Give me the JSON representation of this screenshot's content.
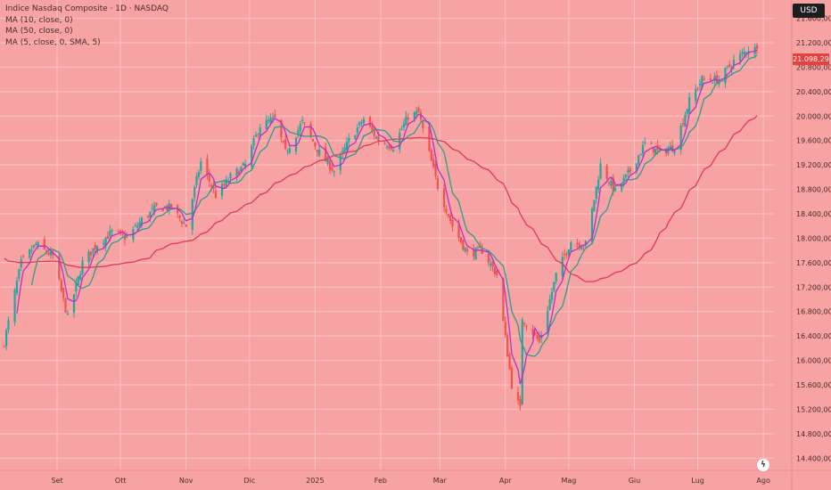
{
  "chart_data": {
    "type": "candlestick",
    "title": "Indice Nasdaq Composite · 1D · NASDAQ",
    "legend_entries": [
      "MA (10, close, 0)",
      "MA (50, close, 0)",
      "MA (5, close, 0, SMA, 5)"
    ],
    "currency": "USD",
    "last_price_label": "21.098,29",
    "last_price": 21098.29,
    "y_ticks": [
      {
        "value": 21600,
        "label": "21.600,00"
      },
      {
        "value": 21200,
        "label": "21.200,00"
      },
      {
        "value": 20800,
        "label": "20.800,00"
      },
      {
        "value": 20400,
        "label": "20.400,00"
      },
      {
        "value": 20000,
        "label": "20.000,00"
      },
      {
        "value": 19600,
        "label": "19.600,00"
      },
      {
        "value": 19200,
        "label": "19.200,00"
      },
      {
        "value": 18800,
        "label": "18.800,00"
      },
      {
        "value": 18400,
        "label": "18.400,00"
      },
      {
        "value": 18000,
        "label": "18.000,00"
      },
      {
        "value": 17600,
        "label": "17.600,00"
      },
      {
        "value": 17200,
        "label": "17.200,00"
      },
      {
        "value": 16800,
        "label": "16.800,00"
      },
      {
        "value": 16400,
        "label": "16.400,00"
      },
      {
        "value": 16000,
        "label": "16.000,00"
      },
      {
        "value": 15600,
        "label": "15.600,00"
      },
      {
        "value": 15200,
        "label": "15.200,00"
      },
      {
        "value": 14800,
        "label": "14.800,00"
      },
      {
        "value": 14400,
        "label": "14.400,00"
      }
    ],
    "ylim": [
      14200,
      21900
    ],
    "x_ticks": [
      "Set",
      "Ott",
      "Nov",
      "Dic",
      "2025",
      "Feb",
      "Mar",
      "Apr",
      "Mag",
      "Giu",
      "Lug",
      "Ago"
    ],
    "close_path": [
      [
        "2024-08-07",
        16300
      ],
      [
        "2024-08-15",
        17600
      ],
      [
        "2024-08-22",
        17900
      ],
      [
        "2024-08-30",
        17700
      ],
      [
        "2024-09-06",
        16700
      ],
      [
        "2024-09-13",
        17600
      ],
      [
        "2024-09-20",
        17900
      ],
      [
        "2024-09-27",
        18100
      ],
      [
        "2024-10-04",
        18000
      ],
      [
        "2024-10-11",
        18300
      ],
      [
        "2024-10-18",
        18500
      ],
      [
        "2024-10-25",
        18500
      ],
      [
        "2024-11-01",
        18200
      ],
      [
        "2024-11-08",
        19250
      ],
      [
        "2024-11-15",
        18700
      ],
      [
        "2024-11-22",
        19000
      ],
      [
        "2024-11-29",
        19200
      ],
      [
        "2024-12-06",
        19850
      ],
      [
        "2024-12-13",
        19950
      ],
      [
        "2024-12-18",
        19400
      ],
      [
        "2024-12-26",
        19900
      ],
      [
        "2025-01-03",
        19400
      ],
      [
        "2025-01-10",
        19100
      ],
      [
        "2025-01-17",
        19600
      ],
      [
        "2025-01-24",
        19950
      ],
      [
        "2025-01-31",
        19600
      ],
      [
        "2025-02-07",
        19500
      ],
      [
        "2025-02-14",
        20000
      ],
      [
        "2025-02-19",
        20050
      ],
      [
        "2025-02-28",
        18850
      ],
      [
        "2025-03-07",
        18200
      ],
      [
        "2025-03-14",
        17750
      ],
      [
        "2025-03-21",
        17800
      ],
      [
        "2025-03-28",
        17400
      ],
      [
        "2025-04-04",
        15600
      ],
      [
        "2025-04-08",
        15200
      ],
      [
        "2025-04-09",
        16700
      ],
      [
        "2025-04-17",
        16300
      ],
      [
        "2025-04-25",
        17400
      ],
      [
        "2025-05-02",
        17950
      ],
      [
        "2025-05-09",
        17900
      ],
      [
        "2025-05-16",
        19200
      ],
      [
        "2025-05-23",
        18750
      ],
      [
        "2025-05-30",
        19100
      ],
      [
        "2025-06-06",
        19550
      ],
      [
        "2025-06-13",
        19400
      ],
      [
        "2025-06-20",
        19500
      ],
      [
        "2025-06-27",
        20250
      ],
      [
        "2025-07-03",
        20600
      ],
      [
        "2025-07-11",
        20600
      ],
      [
        "2025-07-18",
        20900
      ],
      [
        "2025-07-25",
        21100
      ],
      [
        "2025-07-29",
        21098.29
      ]
    ],
    "x_range": [
      "2024-08-05",
      "2025-08-06"
    ],
    "grid": true,
    "legend_position": "top-left",
    "colors": {
      "background": "#f7a3a3",
      "up_candle": "#26a69a",
      "down_candle": "#ef5350",
      "ma10": "#2a9d8f",
      "ma50": "#e03a4e",
      "ma5": "#b532c9",
      "grid": "#fbc4c4",
      "price_tag": "#e8403f"
    }
  }
}
